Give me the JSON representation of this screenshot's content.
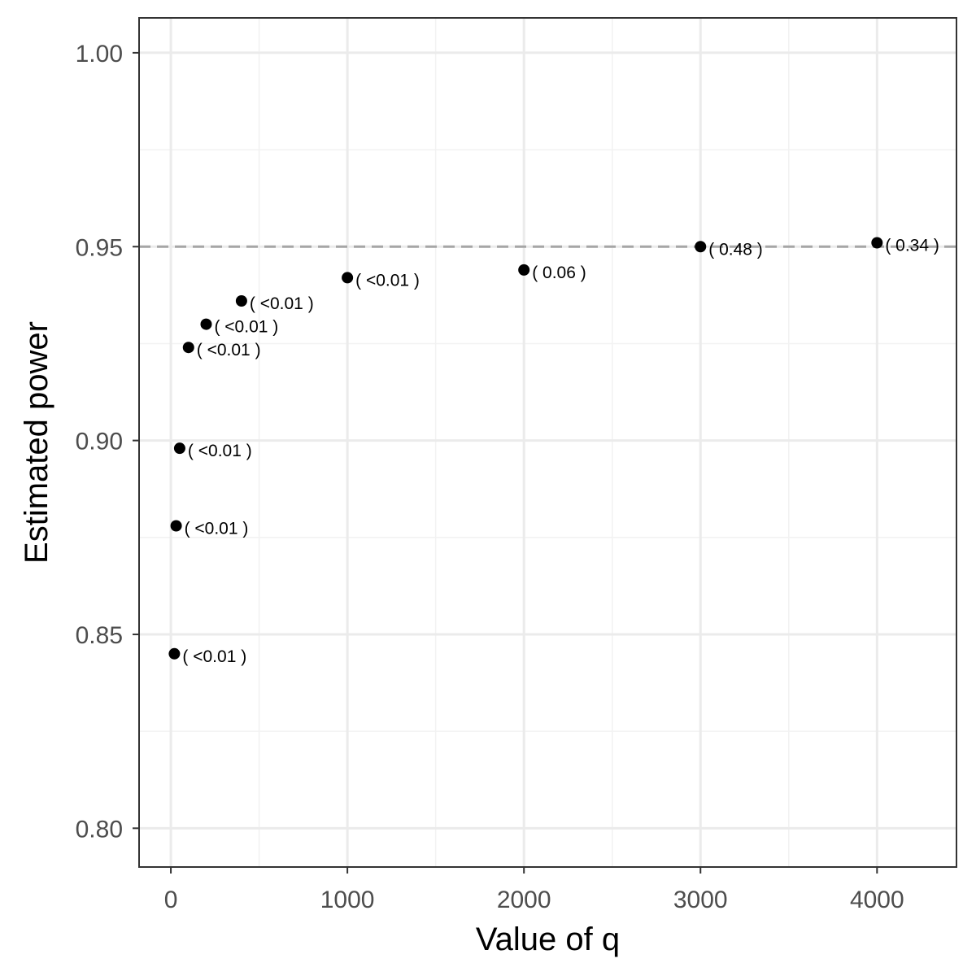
{
  "chart_data": {
    "type": "scatter",
    "xlabel": "Value of q",
    "ylabel": "Estimated power",
    "xlim": [
      -180,
      4450
    ],
    "ylim": [
      0.79,
      1.009
    ],
    "x_ticks": [
      0,
      1000,
      2000,
      3000,
      4000
    ],
    "x_tick_labels": [
      "0",
      "1000",
      "2000",
      "3000",
      "4000"
    ],
    "x_minor_ticks": [
      500,
      1500,
      2500,
      3500
    ],
    "y_ticks": [
      0.8,
      0.85,
      0.9,
      0.95,
      1.0
    ],
    "y_tick_labels": [
      "0.80",
      "0.85",
      "0.90",
      "0.95",
      "1.00"
    ],
    "y_minor_ticks": [
      0.825,
      0.875,
      0.925,
      0.975
    ],
    "reference_line": {
      "y": 0.95,
      "style": "dashed",
      "color": "#a6a6a6"
    },
    "grid": true,
    "legend": "none",
    "points": [
      {
        "x": 20,
        "y": 0.845,
        "label": "( <0.01 )"
      },
      {
        "x": 30,
        "y": 0.878,
        "label": "( <0.01 )"
      },
      {
        "x": 50,
        "y": 0.898,
        "label": "( <0.01 )"
      },
      {
        "x": 100,
        "y": 0.924,
        "label": "( <0.01 )"
      },
      {
        "x": 200,
        "y": 0.93,
        "label": "( <0.01 )"
      },
      {
        "x": 400,
        "y": 0.936,
        "label": "( <0.01 )"
      },
      {
        "x": 1000,
        "y": 0.942,
        "label": "( <0.01 )"
      },
      {
        "x": 2000,
        "y": 0.944,
        "label": "( 0.06 )"
      },
      {
        "x": 3000,
        "y": 0.95,
        "label": "( 0.48 )"
      },
      {
        "x": 4000,
        "y": 0.951,
        "label": "( 0.34 )"
      }
    ],
    "colors": {
      "point": "#000000",
      "panel_border": "#333333",
      "grid_major": "#ebebeb",
      "grid_minor": "#f2f2f2",
      "tick_text": "#4d4d4d"
    }
  }
}
